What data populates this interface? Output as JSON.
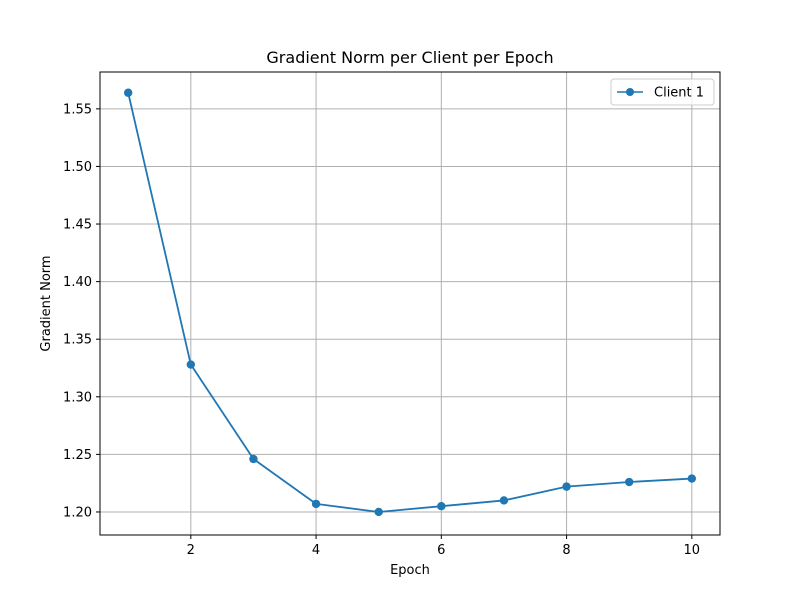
{
  "chart_data": {
    "type": "line",
    "title": "Gradient Norm per Client per Epoch",
    "xlabel": "Epoch",
    "ylabel": "Gradient Norm",
    "xlim": [
      0.55,
      10.45
    ],
    "ylim": [
      1.18,
      1.582
    ],
    "x_ticks": [
      2,
      4,
      6,
      8,
      10
    ],
    "y_ticks": [
      1.2,
      1.25,
      1.3,
      1.35,
      1.4,
      1.45,
      1.5,
      1.55
    ],
    "x_tick_labels": [
      "2",
      "4",
      "6",
      "8",
      "10"
    ],
    "y_tick_labels": [
      "1.20",
      "1.25",
      "1.30",
      "1.35",
      "1.40",
      "1.45",
      "1.50",
      "1.55"
    ],
    "grid": true,
    "legend_position": "top-right",
    "series": [
      {
        "name": "Client 1",
        "color": "#1f77b4",
        "marker": "circle",
        "x": [
          1,
          2,
          3,
          4,
          5,
          6,
          7,
          8,
          9,
          10
        ],
        "y": [
          1.564,
          1.328,
          1.246,
          1.207,
          1.2,
          1.205,
          1.21,
          1.222,
          1.226,
          1.229
        ]
      }
    ]
  }
}
